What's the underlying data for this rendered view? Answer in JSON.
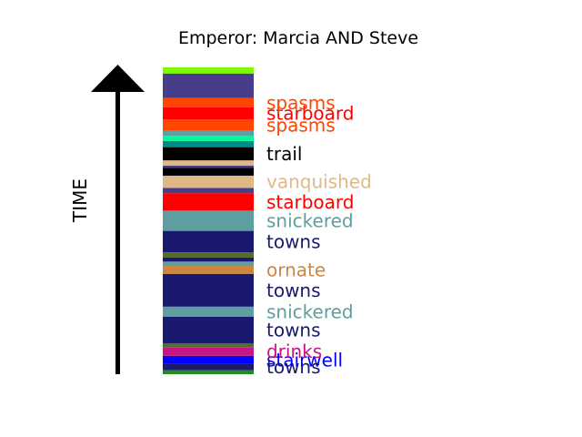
{
  "chart_data": {
    "type": "bar",
    "title": "Emperor: Marcia AND Steve",
    "ylabel": "TIME",
    "stack_order": "bottom-to-top",
    "segments": [
      {
        "color": "#228b22",
        "start": 0.0,
        "end": 1.3
      },
      {
        "color": "#191970",
        "start": 1.3,
        "end": 3.3,
        "label": "towns"
      },
      {
        "color": "#0000ff",
        "start": 3.3,
        "end": 6.0,
        "label": "stairwell"
      },
      {
        "color": "#c71585",
        "start": 6.0,
        "end": 8.7,
        "label": "drinks"
      },
      {
        "color": "#556b2f",
        "start": 8.7,
        "end": 10.0
      },
      {
        "color": "#191970",
        "start": 10.0,
        "end": 18.7,
        "label": "towns"
      },
      {
        "color": "#5f9ea0",
        "start": 18.7,
        "end": 22.0,
        "label": "snickered"
      },
      {
        "color": "#191970",
        "start": 22.0,
        "end": 32.7,
        "label": "towns"
      },
      {
        "color": "#cd853f",
        "start": 32.7,
        "end": 35.3,
        "label": "ornate"
      },
      {
        "color": "#5f9ea0",
        "start": 35.3,
        "end": 36.7
      },
      {
        "color": "#191970",
        "start": 36.7,
        "end": 38.0
      },
      {
        "color": "#556b2f",
        "start": 38.0,
        "end": 39.7
      },
      {
        "color": "#191970",
        "start": 39.7,
        "end": 46.7,
        "label": "towns"
      },
      {
        "color": "#5f9ea0",
        "start": 46.7,
        "end": 53.3,
        "label": "snickered"
      },
      {
        "color": "#ff0000",
        "start": 53.3,
        "end": 59.0,
        "label": "starboard"
      },
      {
        "color": "#483d8b",
        "start": 59.0,
        "end": 60.7
      },
      {
        "color": "#deb887",
        "start": 60.7,
        "end": 64.7,
        "label": "vanquished"
      },
      {
        "color": "#000000",
        "start": 64.7,
        "end": 67.3
      },
      {
        "color": "#483d8b",
        "start": 67.3,
        "end": 68.0
      },
      {
        "color": "#deb887",
        "start": 68.0,
        "end": 69.7
      },
      {
        "color": "#000000",
        "start": 69.7,
        "end": 74.0,
        "label": "trail"
      },
      {
        "color": "#008b8b",
        "start": 74.0,
        "end": 76.0
      },
      {
        "color": "#00fa9a",
        "start": 76.0,
        "end": 77.7
      },
      {
        "color": "#5f9ea0",
        "start": 77.7,
        "end": 79.3
      },
      {
        "color": "#ff4500",
        "start": 79.3,
        "end": 83.0,
        "label": "spasms"
      },
      {
        "color": "#ff0000",
        "start": 83.0,
        "end": 87.0,
        "label": "starboard"
      },
      {
        "color": "#ff4500",
        "start": 87.0,
        "end": 90.0,
        "label": "spasms"
      },
      {
        "color": "#483d8b",
        "start": 90.0,
        "end": 98.0
      },
      {
        "color": "#7cfc00",
        "start": 98.0,
        "end": 100.0
      }
    ]
  }
}
